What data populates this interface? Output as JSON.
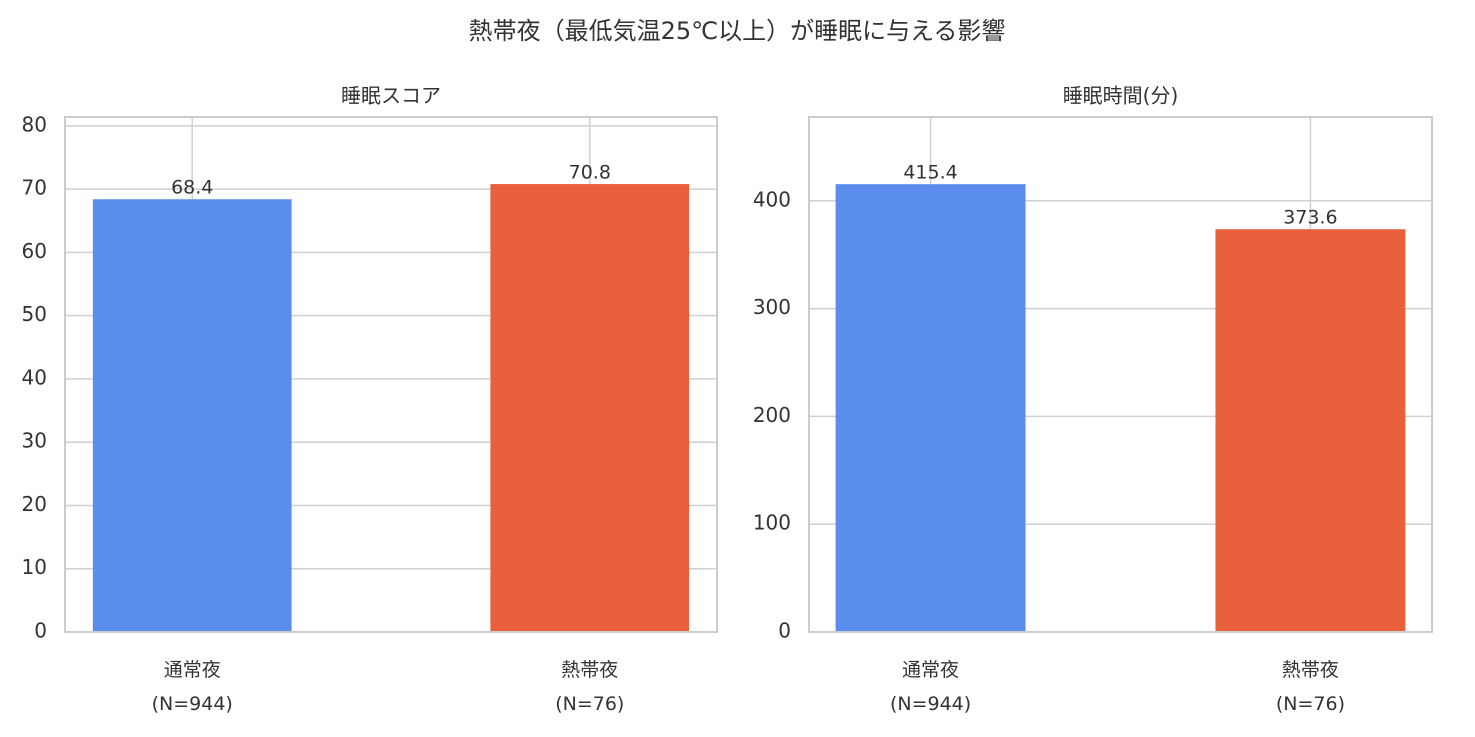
{
  "title": "熱帯夜（最低気温25℃以上）が睡眠に与える影響",
  "chart_data": [
    {
      "type": "bar",
      "title": "睡眠スコア",
      "categories": [
        "通常夜\n(N=944)",
        "熱帯夜\n(N=76)"
      ],
      "values": [
        68.4,
        70.8
      ],
      "colors": [
        "#5b8def",
        "#e8603c"
      ],
      "ylim": [
        0,
        81.4
      ],
      "yticks": [
        0,
        10,
        20,
        30,
        40,
        50,
        60,
        70,
        80
      ],
      "grid": true
    },
    {
      "type": "bar",
      "title": "睡眠時間(分)",
      "categories": [
        "通常夜\n(N=944)",
        "熱帯夜\n(N=76)"
      ],
      "values": [
        415.4,
        373.6
      ],
      "colors": [
        "#5b8def",
        "#e8603c"
      ],
      "ylim": [
        0,
        477.7
      ],
      "yticks": [
        0,
        100,
        200,
        300,
        400
      ],
      "grid": true
    }
  ]
}
